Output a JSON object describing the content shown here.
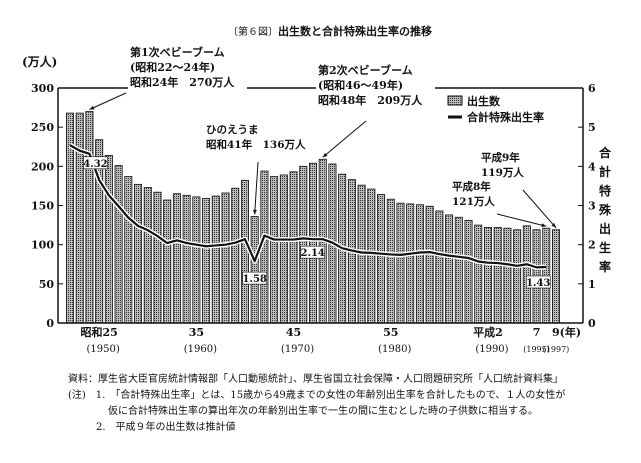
{
  "chart_data": {
    "type": "bar+line",
    "figure_label": "〔第６図〕",
    "title": "出生数と合計特殊出生率の推移",
    "left_axis": {
      "unit_label": "(万人)",
      "ticks": [
        0,
        50,
        100,
        150,
        200,
        250,
        300
      ],
      "ylim": [
        0,
        300
      ]
    },
    "right_axis": {
      "label": "合計特殊出生率",
      "ticks": [
        0,
        1,
        2,
        3,
        4,
        5,
        6
      ],
      "ylim": [
        0,
        6
      ]
    },
    "x_ticks": [
      {
        "year": 1950,
        "label": "昭和25",
        "sub": "(1950)"
      },
      {
        "year": 1960,
        "label": "35",
        "sub": "(1960)"
      },
      {
        "year": 1970,
        "label": "45",
        "sub": "(1970)"
      },
      {
        "year": 1980,
        "label": "55",
        "sub": "(1980)"
      },
      {
        "year": 1990,
        "label": "平成2",
        "sub": "(1990)"
      },
      {
        "year": 1995,
        "label": "7",
        "sub": "(1995)"
      },
      {
        "year": 1997,
        "label": "9(年)",
        "sub": "(1997)"
      }
    ],
    "legend": {
      "position": "top-right",
      "bars": "出生数",
      "line": "合計特殊出生率"
    },
    "years": [
      1947,
      1948,
      1949,
      1950,
      1951,
      1952,
      1953,
      1954,
      1955,
      1956,
      1957,
      1958,
      1959,
      1960,
      1961,
      1962,
      1963,
      1964,
      1965,
      1966,
      1967,
      1968,
      1969,
      1970,
      1971,
      1972,
      1973,
      1974,
      1975,
      1976,
      1977,
      1978,
      1979,
      1980,
      1981,
      1982,
      1983,
      1984,
      1985,
      1986,
      1987,
      1988,
      1989,
      1990,
      1991,
      1992,
      1993,
      1994,
      1995,
      1996,
      1997
    ],
    "series": [
      {
        "name": "出生数",
        "type": "bar",
        "values": [
          268,
          268,
          270,
          234,
          214,
          201,
          187,
          177,
          173,
          167,
          157,
          165,
          163,
          161,
          159,
          162,
          166,
          172,
          182,
          136,
          194,
          187,
          189,
          193,
          200,
          204,
          209,
          203,
          190,
          183,
          176,
          171,
          164,
          158,
          153,
          152,
          151,
          149,
          143,
          138,
          135,
          131,
          125,
          122,
          122,
          121,
          119,
          124,
          119,
          121,
          119
        ]
      },
      {
        "name": "合計特殊出生率",
        "type": "line",
        "values": [
          4.54,
          4.4,
          4.32,
          3.65,
          3.26,
          2.98,
          2.69,
          2.48,
          2.37,
          2.22,
          2.04,
          2.11,
          2.04,
          2.0,
          1.96,
          1.98,
          2.0,
          2.05,
          2.14,
          1.58,
          2.23,
          2.13,
          2.13,
          2.13,
          2.16,
          2.14,
          2.14,
          2.05,
          1.91,
          1.85,
          1.8,
          1.79,
          1.77,
          1.75,
          1.74,
          1.77,
          1.8,
          1.81,
          1.76,
          1.72,
          1.69,
          1.66,
          1.57,
          1.54,
          1.53,
          1.5,
          1.46,
          1.5,
          1.42,
          1.43,
          null
        ]
      }
    ],
    "data_labels": [
      {
        "year": 1949,
        "text": "4.32"
      },
      {
        "year": 1966,
        "text": "1.58"
      },
      {
        "year": 1973,
        "text": "2.14"
      },
      {
        "year": 1996,
        "text": "1.43"
      }
    ],
    "annotations": {
      "boom1": [
        "第1次ベビーブーム",
        "(昭和22～24年)",
        "昭和24年　270万人"
      ],
      "hinoeuma": [
        "ひのえうま",
        "昭和41年　136万人"
      ],
      "boom2": [
        "第2次ベビーブーム",
        "(昭和46～49年)",
        "昭和48年　209万人"
      ],
      "h8": [
        "平成8年",
        "121万人"
      ],
      "h9": [
        "平成9年",
        "119万人"
      ]
    }
  },
  "notes": {
    "source": "資料：厚生省大臣官房統計情報部「人口動態統計」、厚生省国立社会保障・人口問題研究所「人口統計資料集」",
    "note1a": "(注)　1.　「合計特殊出生率」とは、15歳から49歳までの女性の年齢別出生率を合計したもので、１人の女性が",
    "note1b": "仮に合計特殊出生率の算出年次の年齢別出生率で一生の間に生むとした時の子供数に相当する。",
    "note2": "2.　平成９年の出生数は推計値"
  }
}
